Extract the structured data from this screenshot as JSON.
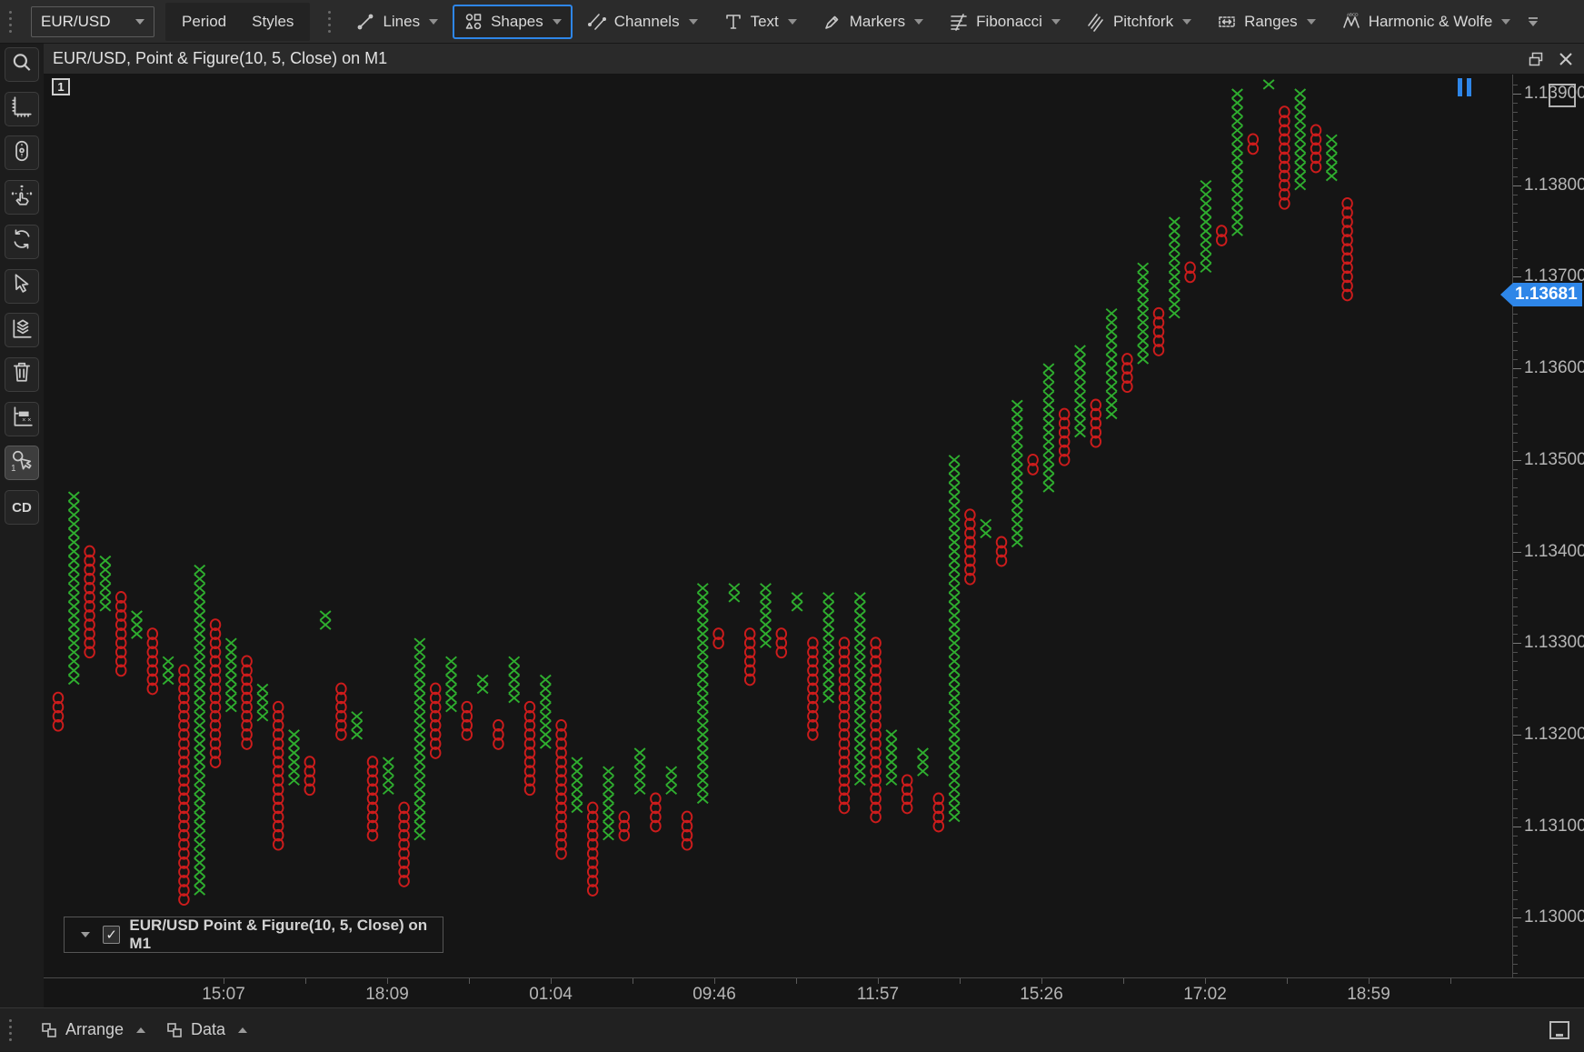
{
  "toolbar": {
    "symbol": "EUR/USD",
    "period_label": "Period",
    "styles_label": "Styles",
    "tools": [
      {
        "label": "Lines",
        "icon": "line-icon",
        "active": false
      },
      {
        "label": "Shapes",
        "icon": "shapes-icon",
        "active": true
      },
      {
        "label": "Channels",
        "icon": "channels-icon",
        "active": false
      },
      {
        "label": "Text",
        "icon": "text-icon",
        "active": false
      },
      {
        "label": "Markers",
        "icon": "markers-icon",
        "active": false
      },
      {
        "label": "Fibonacci",
        "icon": "fibonacci-icon",
        "active": false
      },
      {
        "label": "Pitchfork",
        "icon": "pitchfork-icon",
        "active": false
      },
      {
        "label": "Ranges",
        "icon": "ranges-icon",
        "active": false
      },
      {
        "label": "Harmonic & Wolfe",
        "icon": "harmonic-icon",
        "active": false
      }
    ]
  },
  "sidebar": {
    "items": [
      {
        "name": "search",
        "icon": "search-icon"
      },
      {
        "name": "chart-axes",
        "icon": "axes-icon"
      },
      {
        "name": "scroll-mode",
        "icon": "mouse-scroll-icon"
      },
      {
        "name": "pan-mode",
        "icon": "pan-hand-icon"
      },
      {
        "name": "refresh",
        "icon": "refresh-icon"
      },
      {
        "name": "cursor-select",
        "icon": "cursor-icon"
      },
      {
        "name": "layers",
        "icon": "layers-icon"
      },
      {
        "name": "delete",
        "icon": "trash-icon"
      },
      {
        "name": "indicator-labels",
        "icon": "axis-box-icon"
      },
      {
        "name": "one-click-trading",
        "icon": "tap-one-icon",
        "selected": true
      },
      {
        "name": "chart-data",
        "label": "CD"
      }
    ]
  },
  "chart_header": {
    "title": "EUR/USD, Point & Figure(10, 5, Close) on M1",
    "pane_badge": "1"
  },
  "legend": {
    "label": "EUR/USD Point & Figure(10, 5, Close) on M1",
    "checked": true,
    "checkmark": "✓"
  },
  "price_axis": {
    "labels": [
      "1.13900",
      "1.13800",
      "1.13700",
      "1.13600",
      "1.13500",
      "1.13400",
      "1.13300",
      "1.13200",
      "1.13100",
      "1.13000"
    ],
    "gridlines": [
      1.139,
      1.138,
      1.137,
      1.136,
      1.135,
      1.134,
      1.133,
      1.132,
      1.131,
      1.13
    ],
    "current_label": "1.13681"
  },
  "time_axis": {
    "labels": [
      "15:07",
      "18:09",
      "01:04",
      "09:46",
      "11:57",
      "15:26",
      "17:02",
      "18:59"
    ]
  },
  "statusbar": {
    "arrange_label": "Arrange",
    "data_label": "Data"
  },
  "chart_data": {
    "type": "point-and-figure",
    "symbol": "EUR/USD",
    "timeframe": "M1",
    "box_size_points": 10,
    "reversal": 5,
    "price_source": "Close",
    "box_size": 0.0001,
    "current_price": 1.13681,
    "x_color": "#2fae2f",
    "o_color": "#cc1c1c",
    "ylim": [
      1.1294,
      1.1392
    ],
    "columns_format": [
      "type",
      "top_price",
      "box_count"
    ],
    "columns": [
      [
        "O",
        1.1324,
        4
      ],
      [
        "X",
        1.1346,
        21
      ],
      [
        "O",
        1.134,
        12
      ],
      [
        "X",
        1.1339,
        6
      ],
      [
        "O",
        1.1335,
        9
      ],
      [
        "X",
        1.1333,
        3
      ],
      [
        "O",
        1.1331,
        7
      ],
      [
        "X",
        1.1328,
        3
      ],
      [
        "O",
        1.1327,
        26
      ],
      [
        "X",
        1.1338,
        36
      ],
      [
        "O",
        1.1332,
        16
      ],
      [
        "X",
        1.133,
        8
      ],
      [
        "O",
        1.1328,
        10
      ],
      [
        "X",
        1.1325,
        4
      ],
      [
        "O",
        1.1323,
        16
      ],
      [
        "X",
        1.132,
        6
      ],
      [
        "O",
        1.1317,
        4
      ],
      [
        "X",
        1.1333,
        2
      ],
      [
        "O",
        1.1325,
        6
      ],
      [
        "X",
        1.1322,
        3
      ],
      [
        "O",
        1.1317,
        9
      ],
      [
        "X",
        1.1317,
        4
      ],
      [
        "O",
        1.1312,
        9
      ],
      [
        "X",
        1.133,
        22
      ],
      [
        "O",
        1.1325,
        8
      ],
      [
        "X",
        1.1328,
        6
      ],
      [
        "O",
        1.1323,
        4
      ],
      [
        "X",
        1.1326,
        2
      ],
      [
        "O",
        1.1321,
        3
      ],
      [
        "X",
        1.1328,
        5
      ],
      [
        "O",
        1.1323,
        10
      ],
      [
        "X",
        1.1326,
        8
      ],
      [
        "O",
        1.1321,
        15
      ],
      [
        "X",
        1.1317,
        6
      ],
      [
        "O",
        1.1312,
        10
      ],
      [
        "X",
        1.1316,
        8
      ],
      [
        "O",
        1.1311,
        3
      ],
      [
        "X",
        1.1318,
        5
      ],
      [
        "O",
        1.1313,
        4
      ],
      [
        "X",
        1.1316,
        3
      ],
      [
        "O",
        1.1311,
        4
      ],
      [
        "X",
        1.1336,
        24
      ],
      [
        "O",
        1.1331,
        2
      ],
      [
        "X",
        1.1336,
        2
      ],
      [
        "O",
        1.1331,
        6
      ],
      [
        "X",
        1.1336,
        7
      ],
      [
        "O",
        1.1331,
        3
      ],
      [
        "X",
        1.1335,
        2
      ],
      [
        "O",
        1.133,
        11
      ],
      [
        "X",
        1.1335,
        12
      ],
      [
        "O",
        1.133,
        19
      ],
      [
        "X",
        1.1335,
        21
      ],
      [
        "O",
        1.133,
        20
      ],
      [
        "X",
        1.132,
        6
      ],
      [
        "O",
        1.1315,
        4
      ],
      [
        "X",
        1.1318,
        3
      ],
      [
        "O",
        1.1313,
        4
      ],
      [
        "X",
        1.135,
        40
      ],
      [
        "O",
        1.1344,
        8
      ],
      [
        "X",
        1.1343,
        2
      ],
      [
        "O",
        1.1341,
        3
      ],
      [
        "X",
        1.1356,
        16
      ],
      [
        "O",
        1.135,
        2
      ],
      [
        "X",
        1.136,
        14
      ],
      [
        "O",
        1.1355,
        6
      ],
      [
        "X",
        1.1362,
        10
      ],
      [
        "O",
        1.1356,
        5
      ],
      [
        "X",
        1.1366,
        12
      ],
      [
        "O",
        1.1361,
        4
      ],
      [
        "X",
        1.1371,
        11
      ],
      [
        "O",
        1.1366,
        5
      ],
      [
        "X",
        1.1376,
        11
      ],
      [
        "O",
        1.1371,
        2
      ],
      [
        "X",
        1.138,
        10
      ],
      [
        "O",
        1.1375,
        2
      ],
      [
        "X",
        1.139,
        16
      ],
      [
        "O",
        1.1385,
        2
      ],
      [
        "X",
        1.1392,
        2
      ],
      [
        "O",
        1.1388,
        11
      ],
      [
        "X",
        1.139,
        11
      ],
      [
        "O",
        1.1386,
        5
      ],
      [
        "X",
        1.1385,
        5
      ],
      [
        "O",
        1.1378,
        11
      ]
    ]
  }
}
